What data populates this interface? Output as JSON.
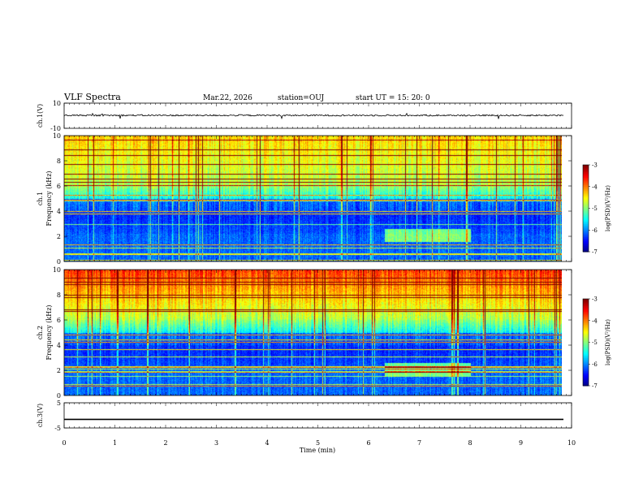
{
  "header": {
    "title": "VLF Spectra",
    "date": "Mar.22, 2026",
    "station": "station=OUJ",
    "start": "start  UT  =   15: 20: 0"
  },
  "chart_data": [
    {
      "name": "ch1-waveform",
      "type": "line",
      "ylabel": "ch.1(V)",
      "ylim": [
        -10,
        10
      ],
      "yticks": [
        "10",
        "-10"
      ],
      "xlim": [
        0,
        10
      ],
      "baseline": 0.3
    },
    {
      "name": "ch1-spectrogram",
      "type": "heatmap",
      "ylabel": "ch.1\nFrequency (kHz)",
      "ylim": [
        0,
        10
      ],
      "yticks": [
        "0",
        "2",
        "4",
        "6",
        "8",
        "10"
      ],
      "xlim": [
        0,
        10
      ],
      "data_end_min": 9.8,
      "colorbar": {
        "label": "log(PSD)(V²/Hz)",
        "range": [
          -7,
          -3
        ],
        "ticks": [
          "-3",
          "-4",
          "-5",
          "-6",
          "-7"
        ]
      }
    },
    {
      "name": "ch2-spectrogram",
      "type": "heatmap",
      "ylabel": "ch.2\nFrequency (kHz)",
      "ylim": [
        0,
        10
      ],
      "yticks": [
        "0",
        "2",
        "4",
        "6",
        "8",
        "10"
      ],
      "xlim": [
        0,
        10
      ],
      "data_end_min": 9.8,
      "colorbar": {
        "label": "log(PSD)(V²/Hz)",
        "range": [
          -7,
          -3
        ],
        "ticks": [
          "-3",
          "-4",
          "-5",
          "-6",
          "-7"
        ]
      }
    },
    {
      "name": "ch3-waveform",
      "type": "line",
      "ylabel": "ch.3(V)",
      "ylim": [
        -5,
        5
      ],
      "yticks": [
        "5",
        "-5"
      ],
      "xlim": [
        0,
        10
      ],
      "baseline": -1.6
    }
  ],
  "x_axis": {
    "label": "Time (min)",
    "ticks": [
      "0",
      "1",
      "2",
      "3",
      "4",
      "5",
      "6",
      "7",
      "8",
      "9",
      "10"
    ]
  }
}
